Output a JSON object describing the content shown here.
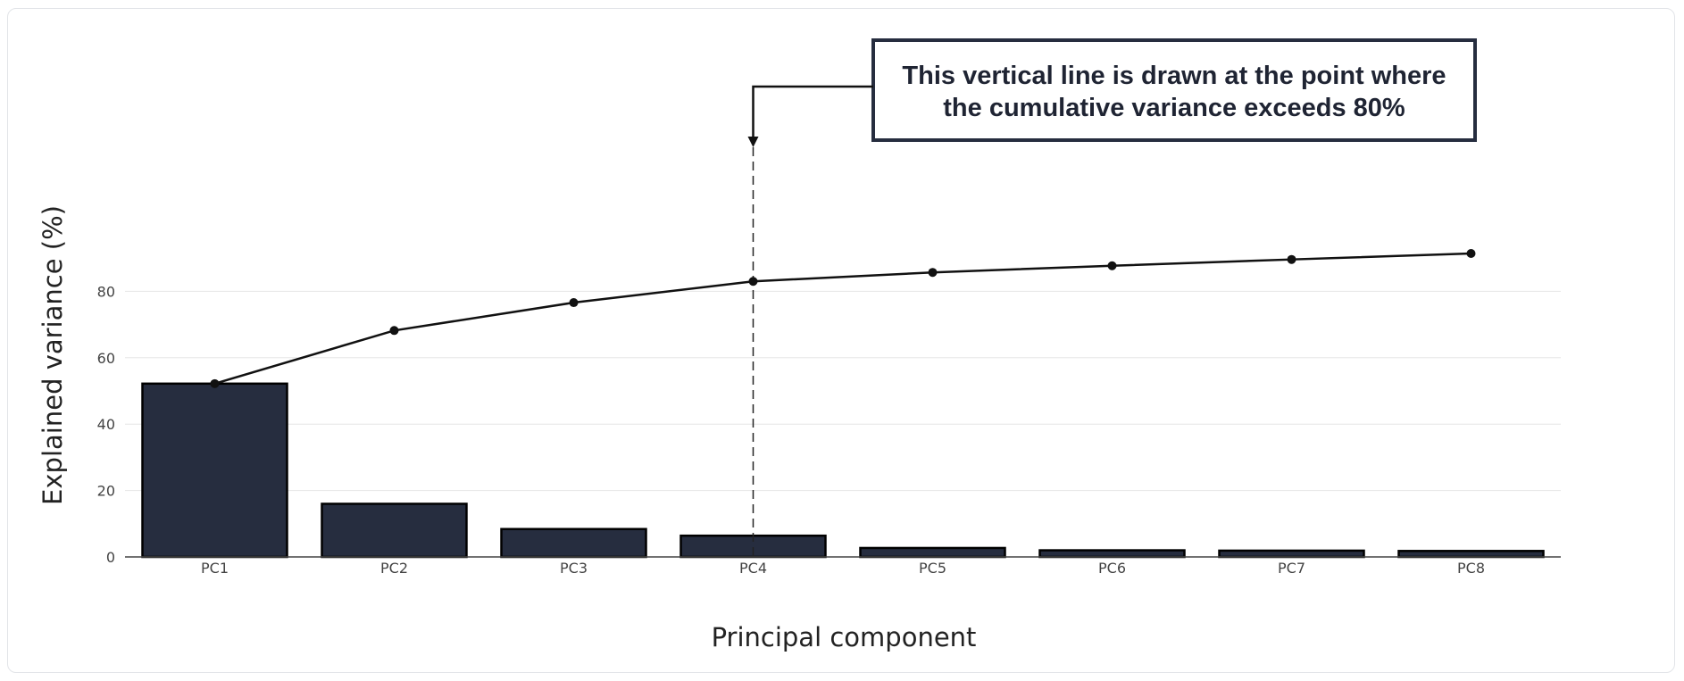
{
  "chart_data": {
    "type": "bar",
    "categories": [
      "PC1",
      "PC2",
      "PC3",
      "PC4",
      "PC5",
      "PC6",
      "PC7",
      "PC8"
    ],
    "series": [
      {
        "type": "bar",
        "values": [
          52.2,
          16.0,
          8.4,
          6.4,
          2.7,
          2.0,
          1.9,
          1.8
        ],
        "color": "#262d3f"
      },
      {
        "type": "line",
        "values": [
          52.2,
          68.2,
          76.6,
          83.0,
          85.7,
          87.7,
          89.6,
          91.4
        ],
        "color": "#111111"
      }
    ],
    "xlabel": "Principal component",
    "ylabel": "Explained variance (%)",
    "ylim": [
      0,
      100
    ],
    "yticks": [
      0,
      20,
      40,
      60,
      80
    ],
    "grid": true,
    "vline": {
      "category": "PC4",
      "style": "dashed"
    },
    "annotation": {
      "lines": [
        "This vertical line is drawn at the point where",
        "the cumulative variance exceeds 80%"
      ],
      "target_category": "PC4"
    }
  }
}
